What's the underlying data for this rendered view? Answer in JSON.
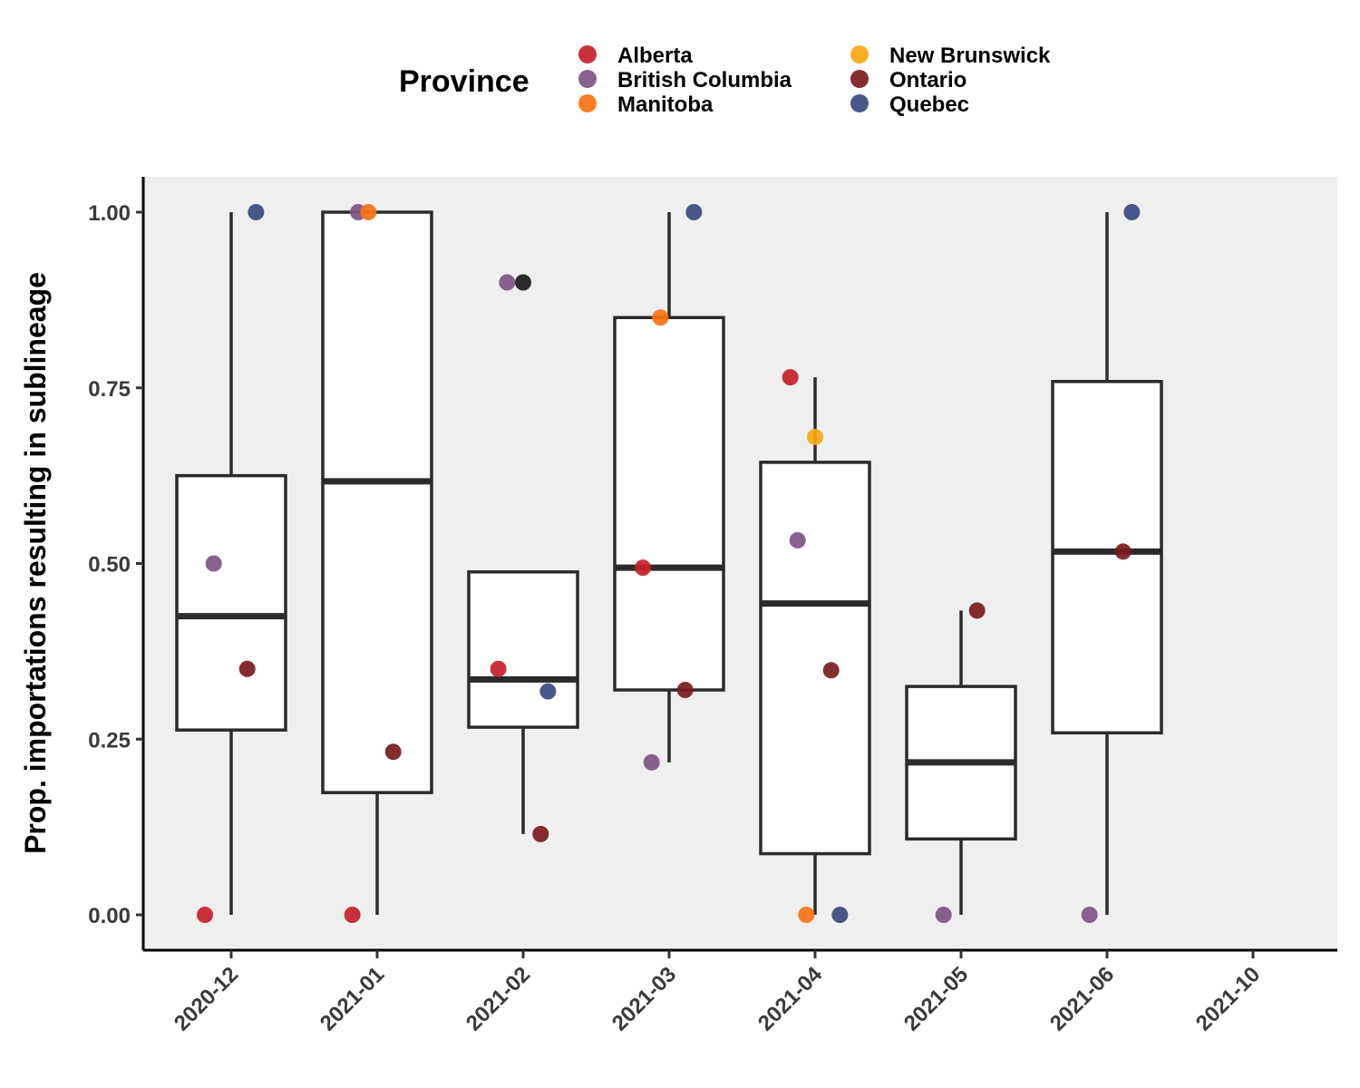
{
  "chart_data": {
    "type": "boxplot",
    "title": "",
    "xlabel": "",
    "ylabel": "Prop. importations resulting in sublineage",
    "ylim": [
      -0.05,
      1.05
    ],
    "yticks": [
      "0.00",
      "0.25",
      "0.50",
      "0.75",
      "1.00"
    ],
    "ytick_values": [
      0,
      0.25,
      0.5,
      0.75,
      1.0
    ],
    "categories": [
      "2020-12",
      "2021-01",
      "2021-02",
      "2021-03",
      "2021-04",
      "2021-05",
      "2021-06",
      "2021-10"
    ],
    "grid": false,
    "legend": {
      "title": "Province",
      "position": "top",
      "entries": [
        {
          "name": "Alberta",
          "color": "#c5202a"
        },
        {
          "name": "British Columbia",
          "color": "#7d5583"
        },
        {
          "name": "Manitoba",
          "color": "#f97215"
        },
        {
          "name": "New Brunswick",
          "color": "#f9a714"
        },
        {
          "name": "Ontario",
          "color": "#7a1b1e"
        },
        {
          "name": "Quebec",
          "color": "#3a4a7f"
        }
      ]
    },
    "boxes": [
      {
        "category": "2020-12",
        "whisker_low": 0.0,
        "q1": 0.263,
        "median": 0.425,
        "q3": 0.625,
        "whisker_high": 1.0
      },
      {
        "category": "2021-01",
        "whisker_low": 0.0,
        "q1": 0.174,
        "median": 0.617,
        "q3": 1.0,
        "whisker_high": 1.0
      },
      {
        "category": "2021-02",
        "whisker_low": 0.115,
        "q1": 0.267,
        "median": 0.335,
        "q3": 0.488,
        "whisker_high": 0.488
      },
      {
        "category": "2021-03",
        "whisker_low": 0.217,
        "q1": 0.32,
        "median": 0.494,
        "q3": 0.85,
        "whisker_high": 1.0
      },
      {
        "category": "2021-04",
        "whisker_low": 0.0,
        "q1": 0.087,
        "median": 0.443,
        "q3": 0.644,
        "whisker_high": 0.765
      },
      {
        "category": "2021-05",
        "whisker_low": 0.0,
        "q1": 0.108,
        "median": 0.217,
        "q3": 0.325,
        "whisker_high": 0.433
      },
      {
        "category": "2021-06",
        "whisker_low": 0.0,
        "q1": 0.259,
        "median": 0.517,
        "q3": 0.759,
        "whisker_high": 1.0
      }
    ],
    "points": [
      {
        "category": "2020-12",
        "province": "Quebec",
        "y": 1.0,
        "jitter": 0.17
      },
      {
        "category": "2020-12",
        "province": "British Columbia",
        "y": 0.5,
        "jitter": -0.12
      },
      {
        "category": "2020-12",
        "province": "Ontario",
        "y": 0.35,
        "jitter": 0.11
      },
      {
        "category": "2020-12",
        "province": "Alberta",
        "y": 0.0,
        "jitter": -0.18
      },
      {
        "category": "2021-01",
        "province": "British Columbia",
        "y": 1.0,
        "jitter": -0.13
      },
      {
        "category": "2021-01",
        "province": "Manitoba",
        "y": 1.0,
        "jitter": -0.06
      },
      {
        "category": "2021-01",
        "province": "Ontario",
        "y": 0.232,
        "jitter": 0.11
      },
      {
        "category": "2021-01",
        "province": "Alberta",
        "y": 0.0,
        "jitter": -0.17
      },
      {
        "category": "2021-02",
        "province": "British Columbia",
        "y": 0.9,
        "jitter": -0.11
      },
      {
        "category": "2021-02",
        "province": "",
        "color": "#1a1a1a",
        "y": 0.9,
        "jitter": 0.0
      },
      {
        "category": "2021-02",
        "province": "Alberta",
        "y": 0.35,
        "jitter": -0.17
      },
      {
        "category": "2021-02",
        "province": "Quebec",
        "y": 0.318,
        "jitter": 0.17
      },
      {
        "category": "2021-02",
        "province": "Ontario",
        "y": 0.115,
        "jitter": 0.12
      },
      {
        "category": "2021-03",
        "province": "Quebec",
        "y": 1.0,
        "jitter": 0.17
      },
      {
        "category": "2021-03",
        "province": "Manitoba",
        "y": 0.85,
        "jitter": -0.06
      },
      {
        "category": "2021-03",
        "province": "Alberta",
        "y": 0.494,
        "jitter": -0.18
      },
      {
        "category": "2021-03",
        "province": "Ontario",
        "y": 0.32,
        "jitter": 0.11
      },
      {
        "category": "2021-03",
        "province": "British Columbia",
        "y": 0.217,
        "jitter": -0.12
      },
      {
        "category": "2021-04",
        "province": "Alberta",
        "y": 0.765,
        "jitter": -0.17
      },
      {
        "category": "2021-04",
        "province": "New Brunswick",
        "y": 0.68,
        "jitter": 0.0
      },
      {
        "category": "2021-04",
        "province": "British Columbia",
        "y": 0.533,
        "jitter": -0.12
      },
      {
        "category": "2021-04",
        "province": "Ontario",
        "y": 0.348,
        "jitter": 0.11
      },
      {
        "category": "2021-04",
        "province": "Manitoba",
        "y": 0.0,
        "jitter": -0.06
      },
      {
        "category": "2021-04",
        "province": "Quebec",
        "y": 0.0,
        "jitter": 0.17
      },
      {
        "category": "2021-05",
        "province": "Ontario",
        "y": 0.433,
        "jitter": 0.11
      },
      {
        "category": "2021-05",
        "province": "British Columbia",
        "y": 0.0,
        "jitter": -0.12
      },
      {
        "category": "2021-06",
        "province": "Quebec",
        "y": 1.0,
        "jitter": 0.17
      },
      {
        "category": "2021-06",
        "province": "Ontario",
        "y": 0.517,
        "jitter": 0.11
      },
      {
        "category": "2021-06",
        "province": "British Columbia",
        "y": 0.0,
        "jitter": -0.12
      }
    ]
  }
}
